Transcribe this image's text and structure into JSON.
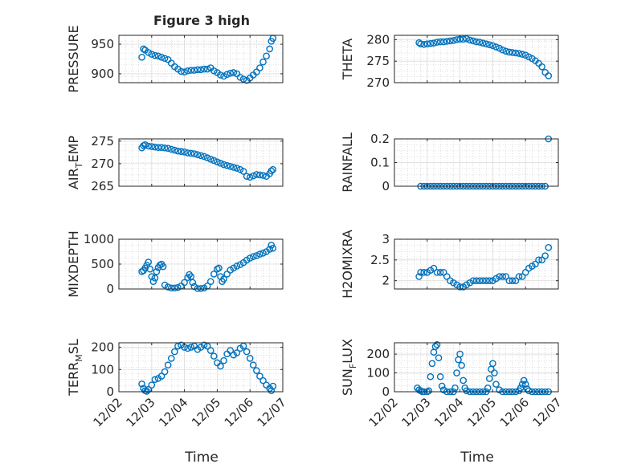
{
  "figure": {
    "title": "Figure 3 high",
    "time_label": "Time",
    "time_ticks": [
      "12/02",
      "12/03",
      "12/04",
      "12/05",
      "12/06",
      "12/07"
    ]
  },
  "colors": {
    "marker": "#0072BD",
    "grid": "#c8c8c8",
    "axis": "#262626",
    "background": "#ffffff"
  },
  "chart_data": [
    {
      "type": "scatter",
      "ylabel": "PRESSURE",
      "ylim": [
        885,
        965
      ],
      "yticks": [
        900,
        950
      ],
      "xlim": [
        0,
        5
      ],
      "grid": true,
      "x": [
        0.7,
        0.75,
        0.8,
        0.9,
        1.0,
        1.1,
        1.2,
        1.3,
        1.4,
        1.5,
        1.6,
        1.7,
        1.8,
        1.9,
        2.0,
        2.1,
        2.2,
        2.3,
        2.4,
        2.5,
        2.6,
        2.7,
        2.8,
        2.9,
        3.0,
        3.1,
        3.2,
        3.3,
        3.4,
        3.5,
        3.6,
        3.7,
        3.8,
        3.9,
        4.0,
        4.1,
        4.2,
        4.3,
        4.4,
        4.5,
        4.6,
        4.65,
        4.7
      ],
      "y": [
        928,
        942,
        940,
        936,
        933,
        931,
        930,
        928,
        926,
        924,
        918,
        912,
        908,
        904,
        903,
        905,
        906,
        906,
        907,
        907,
        908,
        908,
        910,
        905,
        902,
        898,
        896,
        899,
        901,
        902,
        900,
        894,
        891,
        889,
        893,
        898,
        903,
        910,
        920,
        930,
        942,
        955,
        960
      ]
    },
    {
      "type": "scatter",
      "ylabel": "THETA",
      "ylim": [
        270,
        281
      ],
      "yticks": [
        270,
        275,
        280
      ],
      "xlim": [
        0,
        5
      ],
      "grid": true,
      "x": [
        0.75,
        0.8,
        0.9,
        1.0,
        1.1,
        1.2,
        1.3,
        1.4,
        1.5,
        1.6,
        1.7,
        1.8,
        1.9,
        2.0,
        2.1,
        2.2,
        2.3,
        2.4,
        2.5,
        2.6,
        2.7,
        2.8,
        2.9,
        3.0,
        3.1,
        3.2,
        3.3,
        3.4,
        3.5,
        3.6,
        3.7,
        3.8,
        3.9,
        4.0,
        4.1,
        4.2,
        4.3,
        4.4,
        4.5,
        4.6,
        4.7
      ],
      "y": [
        279.3,
        279.0,
        278.9,
        279.0,
        279.1,
        279.2,
        279.4,
        279.5,
        279.5,
        279.6,
        279.7,
        279.8,
        280.0,
        280.1,
        280.1,
        280.2,
        279.9,
        279.7,
        279.5,
        279.4,
        279.2,
        279.0,
        278.8,
        278.6,
        278.3,
        278.0,
        277.6,
        277.3,
        277.1,
        277.0,
        276.9,
        276.8,
        276.6,
        276.4,
        276.0,
        275.6,
        275.1,
        274.5,
        273.7,
        272.4,
        271.6
      ]
    },
    {
      "type": "scatter",
      "ylabel": "AIR_TEMP",
      "ylim": [
        265,
        275.5
      ],
      "yticks": [
        265,
        270,
        275
      ],
      "xlim": [
        0,
        5
      ],
      "grid": true,
      "x": [
        0.7,
        0.75,
        0.8,
        0.9,
        1.0,
        1.1,
        1.2,
        1.3,
        1.4,
        1.5,
        1.6,
        1.7,
        1.8,
        1.9,
        2.0,
        2.1,
        2.2,
        2.3,
        2.4,
        2.5,
        2.6,
        2.7,
        2.8,
        2.9,
        3.0,
        3.1,
        3.2,
        3.3,
        3.4,
        3.5,
        3.6,
        3.7,
        3.8,
        3.9,
        4.0,
        4.1,
        4.2,
        4.3,
        4.4,
        4.5,
        4.6,
        4.65,
        4.7
      ],
      "y": [
        273.5,
        274.0,
        274.2,
        273.9,
        273.8,
        273.7,
        273.6,
        273.6,
        273.5,
        273.4,
        273.2,
        273.0,
        272.8,
        272.7,
        272.6,
        272.4,
        272.3,
        272.2,
        272.0,
        271.8,
        271.6,
        271.3,
        271.0,
        270.7,
        270.4,
        270.1,
        269.8,
        269.6,
        269.4,
        269.2,
        269.0,
        268.7,
        268.3,
        267.2,
        267.0,
        267.3,
        267.6,
        267.5,
        267.4,
        267.2,
        267.8,
        268.4,
        268.7
      ]
    },
    {
      "type": "scatter",
      "ylabel": "RAINFALL",
      "ylim": [
        0,
        0.2
      ],
      "yticks": [
        0,
        0.1,
        0.2
      ],
      "xlim": [
        0,
        5
      ],
      "grid": true,
      "x": [
        0.8,
        0.9,
        1.0,
        1.1,
        1.2,
        1.3,
        1.4,
        1.5,
        1.6,
        1.7,
        1.8,
        1.9,
        2.0,
        2.1,
        2.2,
        2.3,
        2.4,
        2.5,
        2.6,
        2.7,
        2.8,
        2.9,
        3.0,
        3.1,
        3.2,
        3.3,
        3.4,
        3.5,
        3.6,
        3.7,
        3.8,
        3.9,
        4.0,
        4.1,
        4.2,
        4.3,
        4.4,
        4.5,
        4.6,
        4.7
      ],
      "y": [
        0,
        0,
        0,
        0,
        0,
        0,
        0,
        0,
        0,
        0,
        0,
        0,
        0,
        0,
        0,
        0,
        0,
        0,
        0,
        0,
        0,
        0,
        0,
        0,
        0,
        0,
        0,
        0,
        0,
        0,
        0,
        0,
        0,
        0,
        0,
        0,
        0,
        0,
        0,
        0.2
      ]
    },
    {
      "type": "scatter",
      "ylabel": "MIXDEPTH",
      "ylim": [
        0,
        1000
      ],
      "yticks": [
        0,
        500,
        1000
      ],
      "xlim": [
        0,
        5
      ],
      "grid": true,
      "x": [
        0.7,
        0.75,
        0.8,
        0.85,
        0.9,
        0.95,
        1.0,
        1.05,
        1.1,
        1.15,
        1.2,
        1.25,
        1.3,
        1.35,
        1.4,
        1.5,
        1.6,
        1.7,
        1.8,
        1.9,
        2.0,
        2.1,
        2.15,
        2.2,
        2.25,
        2.3,
        2.4,
        2.5,
        2.6,
        2.7,
        2.8,
        2.9,
        3.0,
        3.05,
        3.1,
        3.15,
        3.2,
        3.3,
        3.4,
        3.5,
        3.6,
        3.7,
        3.8,
        3.9,
        4.0,
        4.1,
        4.2,
        4.3,
        4.4,
        4.5,
        4.6,
        4.65,
        4.7
      ],
      "y": [
        350,
        370,
        420,
        480,
        540,
        400,
        250,
        150,
        220,
        350,
        430,
        480,
        500,
        450,
        80,
        40,
        20,
        20,
        30,
        60,
        130,
        230,
        290,
        250,
        130,
        50,
        10,
        10,
        20,
        60,
        150,
        300,
        400,
        420,
        250,
        150,
        200,
        300,
        380,
        420,
        460,
        490,
        530,
        580,
        620,
        650,
        670,
        700,
        720,
        750,
        800,
        880,
        820
      ]
    },
    {
      "type": "scatter",
      "ylabel": "H2OMIXRA",
      "ylim": [
        1.8,
        3
      ],
      "yticks": [
        2,
        2.5,
        3
      ],
      "xlim": [
        0,
        5
      ],
      "grid": true,
      "x": [
        0.75,
        0.8,
        0.9,
        1.0,
        1.1,
        1.2,
        1.3,
        1.4,
        1.5,
        1.6,
        1.7,
        1.8,
        1.9,
        2.0,
        2.1,
        2.2,
        2.3,
        2.4,
        2.5,
        2.6,
        2.7,
        2.8,
        2.9,
        3.0,
        3.1,
        3.2,
        3.3,
        3.4,
        3.5,
        3.6,
        3.7,
        3.8,
        3.9,
        4.0,
        4.1,
        4.2,
        4.3,
        4.4,
        4.5,
        4.6,
        4.7
      ],
      "y": [
        2.1,
        2.2,
        2.2,
        2.2,
        2.25,
        2.3,
        2.2,
        2.2,
        2.2,
        2.1,
        2.0,
        1.95,
        1.9,
        1.85,
        1.85,
        1.9,
        1.95,
        2.0,
        2.0,
        2.0,
        2.0,
        2.0,
        2.0,
        2.0,
        2.05,
        2.1,
        2.1,
        2.1,
        2.0,
        2.0,
        2.0,
        2.1,
        2.1,
        2.2,
        2.3,
        2.35,
        2.4,
        2.5,
        2.5,
        2.6,
        2.8
      ]
    },
    {
      "type": "scatter",
      "ylabel": "TERR_MSL",
      "ylim": [
        0,
        220
      ],
      "yticks": [
        0,
        100,
        200
      ],
      "xlim": [
        0,
        5
      ],
      "grid": true,
      "x": [
        0.7,
        0.75,
        0.8,
        0.85,
        0.9,
        1.0,
        1.1,
        1.2,
        1.3,
        1.4,
        1.5,
        1.6,
        1.7,
        1.8,
        1.9,
        2.0,
        2.1,
        2.2,
        2.3,
        2.4,
        2.5,
        2.6,
        2.7,
        2.8,
        2.9,
        3.0,
        3.1,
        3.2,
        3.3,
        3.4,
        3.5,
        3.6,
        3.7,
        3.8,
        3.9,
        4.0,
        4.1,
        4.2,
        4.3,
        4.4,
        4.5,
        4.6,
        4.65,
        4.7
      ],
      "y": [
        35,
        15,
        5,
        2,
        10,
        30,
        55,
        60,
        70,
        90,
        120,
        150,
        180,
        205,
        210,
        200,
        195,
        200,
        205,
        190,
        200,
        210,
        205,
        185,
        160,
        130,
        115,
        140,
        170,
        185,
        165,
        175,
        195,
        205,
        180,
        150,
        120,
        95,
        70,
        50,
        30,
        15,
        5,
        25
      ]
    },
    {
      "type": "scatter",
      "ylabel": "SUN_FLUX",
      "ylim": [
        0,
        260
      ],
      "yticks": [
        0,
        100,
        200
      ],
      "xlim": [
        0,
        5
      ],
      "grid": true,
      "x": [
        0.7,
        0.75,
        0.8,
        0.85,
        0.9,
        1.0,
        1.05,
        1.1,
        1.15,
        1.2,
        1.25,
        1.3,
        1.35,
        1.4,
        1.45,
        1.5,
        1.6,
        1.7,
        1.8,
        1.85,
        1.9,
        1.95,
        2.0,
        2.05,
        2.1,
        2.15,
        2.2,
        2.3,
        2.4,
        2.5,
        2.6,
        2.7,
        2.8,
        2.85,
        2.9,
        2.95,
        3.0,
        3.05,
        3.1,
        3.2,
        3.3,
        3.4,
        3.5,
        3.6,
        3.7,
        3.8,
        3.85,
        3.9,
        3.95,
        4.0,
        4.05,
        4.1,
        4.2,
        4.3,
        4.4,
        4.5,
        4.6,
        4.7
      ],
      "y": [
        20,
        10,
        5,
        0,
        0,
        0,
        5,
        80,
        150,
        210,
        240,
        250,
        180,
        80,
        30,
        10,
        0,
        0,
        0,
        20,
        100,
        170,
        200,
        140,
        60,
        20,
        5,
        0,
        0,
        0,
        0,
        0,
        0,
        20,
        70,
        120,
        150,
        100,
        40,
        10,
        0,
        0,
        0,
        0,
        0,
        5,
        20,
        40,
        60,
        40,
        15,
        5,
        0,
        0,
        0,
        0,
        0,
        0
      ]
    }
  ]
}
